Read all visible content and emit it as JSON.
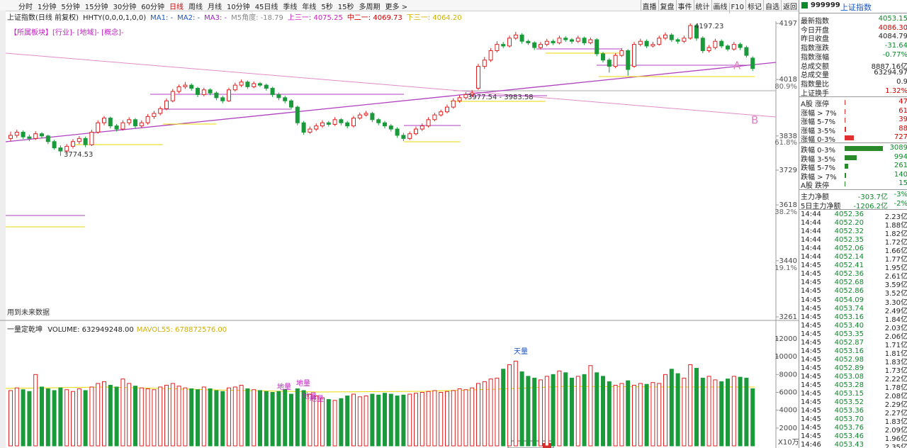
{
  "toolbar": {
    "tabs": [
      "分时",
      "1分钟",
      "5分钟",
      "15分钟",
      "30分钟",
      "60分钟",
      "日线",
      "周线",
      "月线",
      "10分钟",
      "45日线",
      "季线",
      "年线",
      "5秒",
      "15秒",
      "多周期",
      "更多 >"
    ],
    "active": "日线",
    "buttons": [
      "直播",
      "复盘",
      "事件",
      "统计",
      "画线",
      "F10",
      "标记",
      "自选",
      "返回"
    ]
  },
  "chart_data": [
    {
      "type": "candlestick",
      "title": "上证指数(日线 前复权)",
      "indicators": [
        "HHTY(0,0,0,1,0,0)",
        "MA1: -",
        "MA2: -",
        "MA3: -",
        "M5角度: -18.79",
        "上三一: 4075.25",
        "中二一: 4069.73",
        "下三一: 4064.20"
      ],
      "sector": "【所属板块】[行业]- [地域]- [概念]-",
      "note": "用到未来数据",
      "annotations": [
        "4197.23",
        "3774.53",
        "3977.54 - 3983.58",
        "A",
        "B"
      ],
      "ylim": [
        3261,
        4197
      ],
      "yticks": [
        4197,
        4018,
        3838,
        3729,
        3618,
        3440,
        3261
      ],
      "fib_levels": [
        {
          "value": 80.9,
          "label": "80.9%"
        },
        {
          "value": 61.8,
          "label": "61.8%"
        },
        {
          "value": 38.2,
          "label": "38.2%"
        },
        {
          "value": 19.1,
          "label": "19.1%"
        }
      ],
      "candles": [
        [
          3830,
          3852,
          3822,
          3840
        ],
        [
          3840,
          3858,
          3832,
          3850
        ],
        [
          3850,
          3856,
          3828,
          3835
        ],
        [
          3835,
          3842,
          3822,
          3830
        ],
        [
          3830,
          3853,
          3825,
          3845
        ],
        [
          3845,
          3850,
          3830,
          3838
        ],
        [
          3838,
          3842,
          3812,
          3820
        ],
        [
          3820,
          3826,
          3794,
          3800
        ],
        [
          3800,
          3808,
          3774.53,
          3790
        ],
        [
          3790,
          3812,
          3784,
          3805
        ],
        [
          3805,
          3828,
          3798,
          3820
        ],
        [
          3820,
          3838,
          3812,
          3830
        ],
        [
          3830,
          3836,
          3802,
          3810
        ],
        [
          3810,
          3858,
          3806,
          3850
        ],
        [
          3850,
          3888,
          3845,
          3880
        ],
        [
          3880,
          3902,
          3872,
          3895
        ],
        [
          3895,
          3900,
          3862,
          3870
        ],
        [
          3870,
          3876,
          3852,
          3860
        ],
        [
          3860,
          3888,
          3855,
          3880
        ],
        [
          3880,
          3898,
          3872,
          3890
        ],
        [
          3890,
          3895,
          3862,
          3870
        ],
        [
          3870,
          3888,
          3864,
          3880
        ],
        [
          3880,
          3908,
          3874,
          3900
        ],
        [
          3900,
          3918,
          3892,
          3910
        ],
        [
          3910,
          3932,
          3904,
          3925
        ],
        [
          3925,
          3958,
          3920,
          3950
        ],
        [
          3950,
          3988,
          3945,
          3980
        ],
        [
          3980,
          4002,
          3974,
          3995
        ],
        [
          3995,
          4010,
          3988,
          4000
        ],
        [
          4000,
          4006,
          3982,
          3990
        ],
        [
          3990,
          3995,
          3962,
          3970
        ],
        [
          3970,
          3992,
          3964,
          3985
        ],
        [
          3985,
          3990,
          3968,
          3975
        ],
        [
          3975,
          3980,
          3952,
          3960
        ],
        [
          3960,
          3966,
          3942,
          3950
        ],
        [
          3950,
          3992,
          3946,
          3985
        ],
        [
          3985,
          4008,
          3980,
          4000
        ],
        [
          4000,
          4018,
          3994,
          4010
        ],
        [
          4010,
          4015,
          3988,
          3995
        ],
        [
          3995,
          4012,
          3990,
          4005
        ],
        [
          4005,
          4010,
          3994,
          4000
        ],
        [
          4000,
          4005,
          3982,
          3990
        ],
        [
          3990,
          3995,
          3962,
          3970
        ],
        [
          3970,
          3976,
          3952,
          3960
        ],
        [
          3960,
          3966,
          3942,
          3950
        ],
        [
          3950,
          3955,
          3922,
          3930
        ],
        [
          3930,
          3935,
          3872,
          3880
        ],
        [
          3880,
          3886,
          3842,
          3850
        ],
        [
          3850,
          3868,
          3845,
          3860
        ],
        [
          3860,
          3878,
          3854,
          3870
        ],
        [
          3870,
          3888,
          3864,
          3880
        ],
        [
          3880,
          3886,
          3868,
          3875
        ],
        [
          3875,
          3898,
          3870,
          3890
        ],
        [
          3890,
          3895,
          3872,
          3880
        ],
        [
          3880,
          3886,
          3862,
          3870
        ],
        [
          3870,
          3902,
          3865,
          3895
        ],
        [
          3895,
          3912,
          3890,
          3905
        ],
        [
          3905,
          3918,
          3900,
          3910
        ],
        [
          3910,
          3915,
          3882,
          3890
        ],
        [
          3890,
          3895,
          3872,
          3880
        ],
        [
          3880,
          3886,
          3862,
          3870
        ],
        [
          3870,
          3876,
          3852,
          3860
        ],
        [
          3860,
          3866,
          3832,
          3840
        ],
        [
          3840,
          3848,
          3822,
          3830
        ],
        [
          3830,
          3852,
          3825,
          3845
        ],
        [
          3845,
          3868,
          3840,
          3860
        ],
        [
          3860,
          3878,
          3854,
          3870
        ],
        [
          3870,
          3898,
          3865,
          3890
        ],
        [
          3890,
          3912,
          3885,
          3905
        ],
        [
          3905,
          3922,
          3900,
          3915
        ],
        [
          3915,
          3938,
          3910,
          3930
        ],
        [
          3930,
          3958,
          3925,
          3950
        ],
        [
          3950,
          3968,
          3944,
          3960
        ],
        [
          3960,
          3978,
          3954,
          3970
        ],
        [
          3970,
          3984,
          3962,
          3975
        ],
        [
          3990,
          4068,
          3985,
          4060
        ],
        [
          4060,
          4090,
          4052,
          4080
        ],
        [
          4080,
          4118,
          4074,
          4110
        ],
        [
          4110,
          4140,
          4104,
          4130
        ],
        [
          4130,
          4138,
          4118,
          4125
        ],
        [
          4125,
          4158,
          4120,
          4150
        ],
        [
          4150,
          4170,
          4144,
          4160
        ],
        [
          4160,
          4166,
          4132,
          4140
        ],
        [
          4140,
          4146,
          4128,
          4135
        ],
        [
          4135,
          4140,
          4112,
          4120
        ],
        [
          4120,
          4138,
          4114,
          4130
        ],
        [
          4130,
          4148,
          4124,
          4140
        ],
        [
          4140,
          4146,
          4128,
          4135
        ],
        [
          4135,
          4158,
          4130,
          4150
        ],
        [
          4150,
          4156,
          4138,
          4145
        ],
        [
          4145,
          4150,
          4132,
          4140
        ],
        [
          4140,
          4158,
          4134,
          4150
        ],
        [
          4150,
          4155,
          4128,
          4135
        ],
        [
          4135,
          4152,
          4130,
          4145
        ],
        [
          4145,
          4150,
          4092,
          4100
        ],
        [
          4100,
          4106,
          4072,
          4080
        ],
        [
          4080,
          4086,
          4040,
          4060
        ],
        [
          4060,
          4102,
          4054,
          4095
        ],
        [
          4095,
          4118,
          4090,
          4110
        ],
        [
          4110,
          4115,
          4030,
          4050
        ],
        [
          4060,
          4138,
          4055,
          4130
        ],
        [
          4130,
          4148,
          4124,
          4140
        ],
        [
          4140,
          4146,
          4118,
          4125
        ],
        [
          4125,
          4138,
          4120,
          4130
        ],
        [
          4130,
          4158,
          4126,
          4150
        ],
        [
          4150,
          4168,
          4144,
          4160
        ],
        [
          4160,
          4166,
          4138,
          4145
        ],
        [
          4145,
          4150,
          4132,
          4140
        ],
        [
          4140,
          4158,
          4134,
          4150
        ],
        [
          4150,
          4197.23,
          4145,
          4190
        ],
        [
          4190,
          4195,
          4142,
          4150
        ],
        [
          4150,
          4156,
          4102,
          4110
        ],
        [
          4110,
          4128,
          4104,
          4120
        ],
        [
          4120,
          4148,
          4114,
          4140
        ],
        [
          4140,
          4146,
          4118,
          4125
        ],
        [
          4125,
          4130,
          4108,
          4115
        ],
        [
          4115,
          4138,
          4110,
          4130
        ],
        [
          4130,
          4136,
          4112,
          4120
        ],
        [
          4120,
          4126,
          4088,
          4095
        ],
        [
          4086.3,
          4092,
          4045,
          4053.15
        ]
      ]
    },
    {
      "type": "bar",
      "title": "一量定乾坤",
      "indicators": [
        "VOLUME: 632949248.00",
        "MAVOL55: 678872576.00"
      ],
      "unit": "X10万",
      "annotations": [
        "天量",
        "地量",
        "地量",
        "地量",
        "地量"
      ],
      "ylim": [
        0,
        12000
      ],
      "yticks": [
        2000,
        4000,
        6000,
        8000,
        10000,
        12000
      ],
      "values": [
        6200,
        6500,
        6300,
        6100,
        8000,
        6600,
        6400,
        6200,
        6500,
        6300,
        6100,
        6400,
        6200,
        6600,
        7000,
        7200,
        6800,
        6600,
        7500,
        7000,
        6700,
        6500,
        6400,
        6300,
        6600,
        6800,
        7000,
        6700,
        6500,
        6400,
        6300,
        6600,
        6400,
        6200,
        6100,
        6500,
        6600,
        6800,
        6400,
        6300,
        6200,
        6100,
        6000,
        6100,
        6300,
        5800,
        6400,
        6200,
        5800,
        5600,
        5400,
        5200,
        5100,
        5300,
        5600,
        5800,
        5500,
        5600,
        5800,
        5700,
        5900,
        5800,
        5600,
        5700,
        5800,
        5900,
        6000,
        6100,
        6200,
        6000,
        6100,
        6200,
        6400,
        6300,
        6500,
        7000,
        7200,
        7500,
        7600,
        8600,
        9100,
        9500,
        8300,
        7800,
        7600,
        7400,
        7800,
        8000,
        8400,
        8200,
        7600,
        7800,
        8000,
        9000,
        8200,
        7800,
        7200,
        6800,
        7000,
        7300,
        6800,
        7000,
        6900,
        7100,
        7000,
        8000,
        8600,
        8100,
        7600,
        9100,
        8700,
        7600,
        7800,
        7400,
        7200,
        7500,
        7800,
        7700,
        7600,
        6400
      ]
    }
  ],
  "right_panel": {
    "code": "999999",
    "name": "上证指数",
    "quote": [
      [
        "最新指数",
        "4053.15"
      ],
      [
        "今日开盘",
        "4086.30"
      ],
      [
        "昨日收盘",
        "4084.79"
      ],
      [
        "指数涨跌",
        "-31.64"
      ],
      [
        "指数涨幅",
        "-0.77%"
      ],
      [
        "总成交额",
        "8887.16亿"
      ],
      [
        "总成交量",
        "63294.97"
      ],
      [
        "指数量比",
        "0.9"
      ],
      [
        "上证换手",
        "1.32%"
      ]
    ],
    "breadth": [
      {
        "label": "A股 涨停",
        "value": 47
      },
      {
        "label": "涨幅 > 7%",
        "value": 61
      },
      {
        "label": "涨幅 5-7%",
        "value": 39
      },
      {
        "label": "涨幅 3-5%",
        "value": 88
      },
      {
        "label": "涨幅 0-3%",
        "value": 727
      },
      {
        "label": "跌幅 0-3%",
        "value": 3089
      },
      {
        "label": "跌幅 3-5%",
        "value": 994
      },
      {
        "label": "跌幅 5-7%",
        "value": 261
      },
      {
        "label": "跌幅 > 7%",
        "value": 140
      },
      {
        "label": "A股 跌停",
        "value": 15
      }
    ],
    "flows": [
      [
        "主力净额",
        "-303.7亿",
        "-3%"
      ],
      [
        "5日主力净额",
        "-1206.2亿",
        "-2%"
      ]
    ],
    "ticks": [
      [
        "14:44",
        "4052.36",
        "2.23亿"
      ],
      [
        "14:44",
        "4052.20",
        "1.88亿"
      ],
      [
        "14:44",
        "4052.32",
        "1.82亿"
      ],
      [
        "14:44",
        "4052.35",
        "1.72亿"
      ],
      [
        "14:44",
        "4052.06",
        "1.66亿"
      ],
      [
        "14:44",
        "4052.14",
        "1.77亿"
      ],
      [
        "14:45",
        "4052.41",
        "1.95亿"
      ],
      [
        "14:45",
        "4052.36",
        "2.61亿"
      ],
      [
        "14:45",
        "4052.68",
        "3.59亿"
      ],
      [
        "14:45",
        "4052.86",
        "3.52亿"
      ],
      [
        "14:45",
        "4054.09",
        "3.30亿"
      ],
      [
        "14:45",
        "4053.74",
        "2.49亿"
      ],
      [
        "14:45",
        "4053.16",
        "1.84亿"
      ],
      [
        "14:45",
        "4053.40",
        "2.03亿"
      ],
      [
        "14:45",
        "4053.35",
        "2.06亿"
      ],
      [
        "14:45",
        "4052.87",
        "1.71亿"
      ],
      [
        "14:45",
        "4053.16",
        "1.81亿"
      ],
      [
        "14:45",
        "4052.98",
        "1.83亿"
      ],
      [
        "14:45",
        "4052.89",
        "1.73亿"
      ],
      [
        "14:45",
        "4053.08",
        "2.22亿"
      ],
      [
        "14:45",
        "4053.28",
        "1.78亿"
      ],
      [
        "14:45",
        "4053.15",
        "2.08亿"
      ],
      [
        "14:45",
        "4053.52",
        "2.29亿"
      ],
      [
        "14:45",
        "4053.36",
        "2.27亿"
      ],
      [
        "14:45",
        "4053.70",
        "1.83亿"
      ],
      [
        "14:45",
        "4053.76",
        "2.09亿"
      ],
      [
        "14:45",
        "4053.46",
        "1.96亿"
      ],
      [
        "14:46",
        "4053.43",
        "2.35亿"
      ]
    ]
  }
}
